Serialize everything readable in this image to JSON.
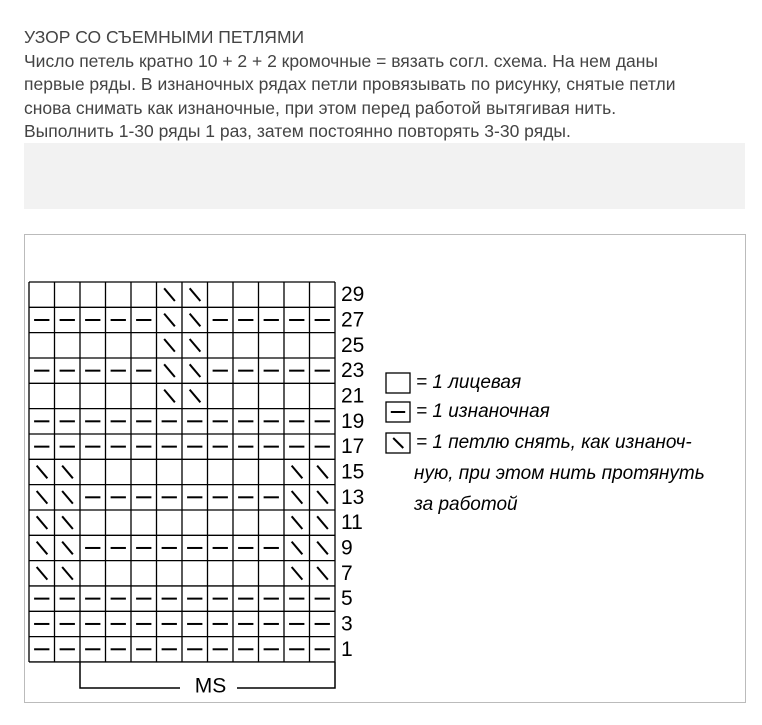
{
  "header": {
    "title": "УЗОР СО СЪЕМНЫМИ ПЕТЛЯМИ",
    "lines": [
      "Число петель кратно 10 + 2 + 2 кромочные = вязать согл. схема. На нем даны",
      "первые ряды. В изнаночных рядах петли провязывать по рисунку, снятые петли",
      "снова снимать как изнаночные, при этом перед работой вытягивая нить.",
      "Выполнить 1-30 ряды 1 раз, затем постоянно повторять 3-30 ряды."
    ]
  },
  "chart": {
    "row_labels": [
      29,
      27,
      25,
      23,
      21,
      19,
      17,
      15,
      13,
      11,
      9,
      7,
      5,
      3,
      1
    ],
    "repeat_label": "MS",
    "legend": [
      {
        "lines": [
          "= 1 лицевая"
        ]
      },
      {
        "lines": [
          "= 1 изнаночная"
        ]
      },
      {
        "lines": [
          "= 1 петлю снять, как изнаноч-",
          "ную, при этом нить протянуть",
          "за работой"
        ]
      }
    ]
  }
}
